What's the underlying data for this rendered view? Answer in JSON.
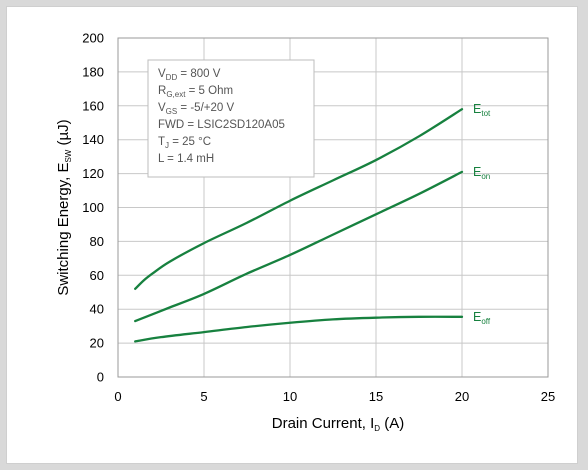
{
  "chart_data": {
    "type": "line",
    "title": "",
    "xlabel": {
      "main": "Drain Current, I",
      "sub": "D",
      "tail": " (A)"
    },
    "ylabel": {
      "main": "Switching Energy, E",
      "sub": "SW",
      "tail": " (µJ)"
    },
    "xlim": [
      0,
      25
    ],
    "ylim": [
      0,
      200
    ],
    "xticks": [
      0,
      5,
      10,
      15,
      20,
      25
    ],
    "yticks": [
      0,
      20,
      40,
      60,
      80,
      100,
      120,
      140,
      160,
      180,
      200
    ],
    "grid": true,
    "line_color": "#17813f",
    "series": [
      {
        "name": {
          "main": "E",
          "sub": "tot"
        },
        "x": [
          1,
          1.5,
          2,
          3,
          5,
          7.5,
          10,
          12.5,
          15,
          17.5,
          20
        ],
        "y": [
          52,
          57,
          61,
          68,
          79,
          91,
          104,
          116,
          128,
          142,
          158
        ]
      },
      {
        "name": {
          "main": "E",
          "sub": "on"
        },
        "x": [
          1,
          2,
          3,
          5,
          7.5,
          10,
          12.5,
          15,
          17.5,
          20
        ],
        "y": [
          33,
          37,
          41,
          49,
          61,
          72,
          84,
          96,
          108,
          121
        ]
      },
      {
        "name": {
          "main": "E",
          "sub": "off"
        },
        "x": [
          1,
          2.5,
          5,
          7.5,
          10,
          12.5,
          15,
          17.5,
          20
        ],
        "y": [
          21,
          23.5,
          26.5,
          29.5,
          32,
          34,
          35,
          35.5,
          35.5
        ]
      }
    ],
    "annotation": [
      {
        "main": "V",
        "sub": "DD",
        "tail": " = 800 V"
      },
      {
        "main": "R",
        "sub": "G,ext",
        "tail": " = 5 Ohm"
      },
      {
        "main": "V",
        "sub": "GS",
        "tail": " = -5/+20 V"
      },
      {
        "main": "FWD = LSIC2SD120A05",
        "sub": "",
        "tail": ""
      },
      {
        "main": "T",
        "sub": "J",
        "tail": " = 25 °C"
      },
      {
        "main": "L = 1.4 mH",
        "sub": "",
        "tail": ""
      }
    ]
  }
}
